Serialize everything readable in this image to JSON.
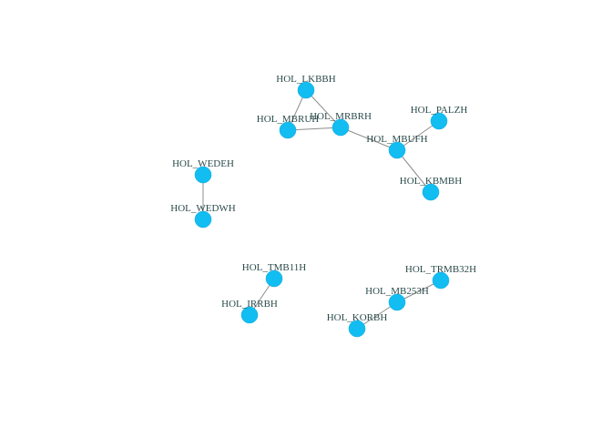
{
  "graph": {
    "node_color": "#12bdf2",
    "edge_color": "#8c8c8c",
    "label_color": "#2b4a4a",
    "nodes": [
      {
        "id": "HOL_LKBBH",
        "label": "HOL_LKBBH"
      },
      {
        "id": "HOL_MBRUH",
        "label": "HOL_MBRUH"
      },
      {
        "id": "HOL_MRBRH",
        "label": "HOL_MRBRH"
      },
      {
        "id": "HOL_PALZH",
        "label": "HOL_PALZH"
      },
      {
        "id": "HOL_MBUFH",
        "label": "HOL_MBUFH"
      },
      {
        "id": "HOL_KBMBH",
        "label": "HOL_KBMBH"
      },
      {
        "id": "HOL_WEDEH",
        "label": "HOL_WEDEH"
      },
      {
        "id": "HOL_WEDWH",
        "label": "HOL_WEDWH"
      },
      {
        "id": "HOL_TMB11H",
        "label": "HOL_TMB11H"
      },
      {
        "id": "HOL_IRRBH",
        "label": "HOL_IRRBH"
      },
      {
        "id": "HOL_TRMB32H",
        "label": "HOL_TRMB32H"
      },
      {
        "id": "HOL_MB253H",
        "label": "HOL_MB253H"
      },
      {
        "id": "HOL_KORBH",
        "label": "HOL_KORBH"
      }
    ],
    "edges": [
      [
        "HOL_LKBBH",
        "HOL_MBRUH"
      ],
      [
        "HOL_LKBBH",
        "HOL_MRBRH"
      ],
      [
        "HOL_MBRUH",
        "HOL_MRBRH"
      ],
      [
        "HOL_MRBRH",
        "HOL_MBUFH"
      ],
      [
        "HOL_PALZH",
        "HOL_MBUFH"
      ],
      [
        "HOL_MBUFH",
        "HOL_KBMBH"
      ],
      [
        "HOL_WEDEH",
        "HOL_WEDWH"
      ],
      [
        "HOL_TMB11H",
        "HOL_IRRBH"
      ],
      [
        "HOL_TRMB32H",
        "HOL_MB253H"
      ],
      [
        "HOL_MB253H",
        "HOL_KORBH"
      ]
    ]
  }
}
